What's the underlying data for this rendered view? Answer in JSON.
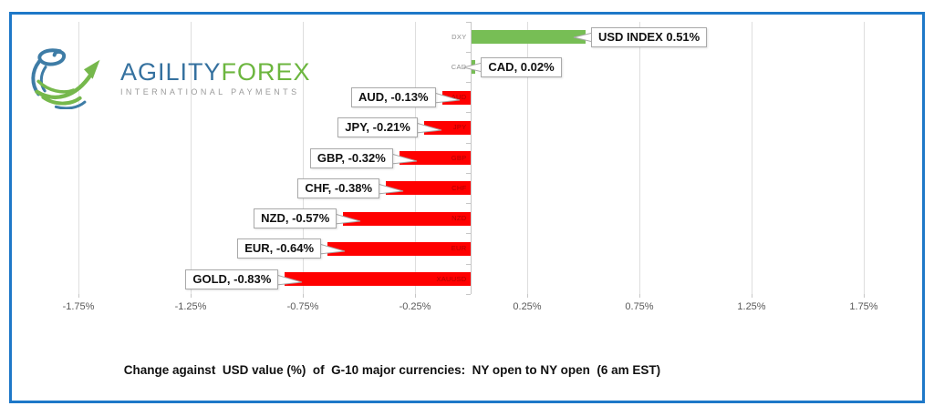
{
  "logo": {
    "brand_primary": "AGILITY",
    "brand_secondary": "FOREX",
    "tagline": "INTERNATIONAL PAYMENTS"
  },
  "footer_title": "Change against  USD value (%)  of  G-10 major currencies:  NY open to NY open  (6 am EST)",
  "colors": {
    "frame_border": "#1e78c8",
    "positive_bar": "#77be55",
    "negative_bar": "#ff0000",
    "positive_inner_label": "#8f8f8f",
    "negative_inner_label": "#ad0000",
    "gridline": "#dedede",
    "axis_line": "#c6c6c6",
    "tick_label": "#595959",
    "callout_border": "#a9a9a9",
    "brand_blue": "#35719f",
    "brand_green": "#6cb63f"
  },
  "chart_data": {
    "type": "bar",
    "orientation": "horizontal",
    "title": "Change against  USD value (%)  of  G-10 major currencies:  NY open to NY open  (6 am EST)",
    "categories": [
      "DXY",
      "CAD",
      "AUD",
      "JPY",
      "GBP",
      "CHF",
      "NZD",
      "EUR",
      "XAUUSD"
    ],
    "values": [
      0.51,
      0.02,
      -0.13,
      -0.21,
      -0.32,
      -0.38,
      -0.57,
      -0.64,
      -0.83
    ],
    "data_labels": [
      "USD INDEX 0.51%",
      "CAD, 0.02%",
      "AUD, -0.13%",
      "JPY, -0.21%",
      "GBP, -0.32%",
      "CHF, -0.38%",
      "NZD, -0.57%",
      "EUR, -0.64%",
      "GOLD, -0.83%"
    ],
    "x_ticks": [
      {
        "label": "-1.75%",
        "value": -1.75
      },
      {
        "label": "-1.25%",
        "value": -1.25
      },
      {
        "label": "-0.75%",
        "value": -0.75
      },
      {
        "label": "-0.25%",
        "value": -0.25
      },
      {
        "label": "0.25%",
        "value": 0.25
      },
      {
        "label": "0.75%",
        "value": 0.75
      },
      {
        "label": "1.25%",
        "value": 1.25
      },
      {
        "label": "1.75%",
        "value": 1.75
      }
    ],
    "xlim": [
      -2.0,
      2.0
    ],
    "grid": true,
    "legend": "none",
    "xlabel": "",
    "ylabel": ""
  }
}
